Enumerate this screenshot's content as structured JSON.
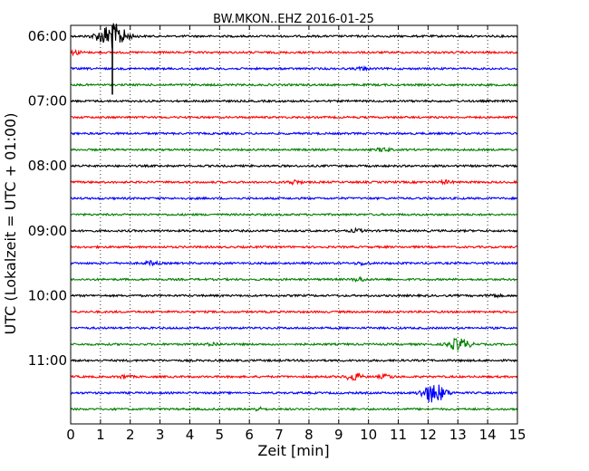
{
  "chart_data": {
    "type": "line",
    "title": "BW.MKON..EHZ 2016-01-25",
    "xlabel": "Zeit  [min]",
    "ylabel": "UTC (Lokalzeit = UTC + 01:00)",
    "xlim": [
      0,
      15
    ],
    "x_ticks": [
      "0",
      "1",
      "2",
      "3",
      "4",
      "5",
      "6",
      "7",
      "8",
      "9",
      "10",
      "11",
      "12",
      "13",
      "14",
      "15"
    ],
    "y_tick_labels": [
      "06:00",
      "07:00",
      "08:00",
      "09:00",
      "10:00",
      "11:00"
    ],
    "row_interval_minutes": 15,
    "start_time": "06:00",
    "grid": true,
    "series_colors": [
      "#000000",
      "#ff0000",
      "#0000ff",
      "#008000"
    ],
    "rows": [
      {
        "time": "06:00",
        "color": "#000000",
        "events": [
          {
            "min": 1.4,
            "amp": 14
          }
        ]
      },
      {
        "time": "06:15",
        "color": "#ff0000",
        "events": [
          {
            "min": 0.15,
            "amp": 2
          }
        ]
      },
      {
        "time": "06:30",
        "color": "#0000ff",
        "events": [
          {
            "min": 9.8,
            "amp": 1.5
          }
        ]
      },
      {
        "time": "06:45",
        "color": "#008000",
        "events": []
      },
      {
        "time": "07:00",
        "color": "#000000",
        "events": []
      },
      {
        "time": "07:15",
        "color": "#ff0000",
        "events": []
      },
      {
        "time": "07:30",
        "color": "#0000ff",
        "events": []
      },
      {
        "time": "07:45",
        "color": "#008000",
        "events": [
          {
            "min": 10.5,
            "amp": 2
          }
        ]
      },
      {
        "time": "08:00",
        "color": "#000000",
        "events": []
      },
      {
        "time": "08:15",
        "color": "#ff0000",
        "events": [
          {
            "min": 7.5,
            "amp": 2
          },
          {
            "min": 12.6,
            "amp": 1.5
          }
        ]
      },
      {
        "time": "08:30",
        "color": "#0000ff",
        "events": []
      },
      {
        "time": "08:45",
        "color": "#008000",
        "events": []
      },
      {
        "time": "09:00",
        "color": "#000000",
        "events": [
          {
            "min": 9.6,
            "amp": 1.5
          }
        ]
      },
      {
        "time": "09:15",
        "color": "#ff0000",
        "events": []
      },
      {
        "time": "09:30",
        "color": "#0000ff",
        "events": [
          {
            "min": 2.7,
            "amp": 2
          },
          {
            "min": 9.8,
            "amp": 1.5
          }
        ]
      },
      {
        "time": "09:45",
        "color": "#008000",
        "events": [
          {
            "min": 9.7,
            "amp": 2
          }
        ]
      },
      {
        "time": "10:00",
        "color": "#000000",
        "events": [
          {
            "min": 14.2,
            "amp": 1.5
          }
        ]
      },
      {
        "time": "10:15",
        "color": "#ff0000",
        "events": []
      },
      {
        "time": "10:30",
        "color": "#0000ff",
        "events": []
      },
      {
        "time": "10:45",
        "color": "#008000",
        "events": [
          {
            "min": 4.8,
            "amp": 1.5
          },
          {
            "min": 12.8,
            "amp": 2
          },
          {
            "min": 13.1,
            "amp": 6
          }
        ]
      },
      {
        "time": "11:00",
        "color": "#000000",
        "events": []
      },
      {
        "time": "11:15",
        "color": "#ff0000",
        "events": [
          {
            "min": 1.8,
            "amp": 1.5
          },
          {
            "min": 9.5,
            "amp": 4
          },
          {
            "min": 10.6,
            "amp": 2
          }
        ]
      },
      {
        "time": "11:30",
        "color": "#0000ff",
        "events": [
          {
            "min": 12.0,
            "amp": 5
          },
          {
            "min": 12.3,
            "amp": 8
          }
        ]
      },
      {
        "time": "11:45",
        "color": "#008000",
        "events": [
          {
            "min": 6.3,
            "amp": 1.5
          }
        ]
      }
    ]
  }
}
